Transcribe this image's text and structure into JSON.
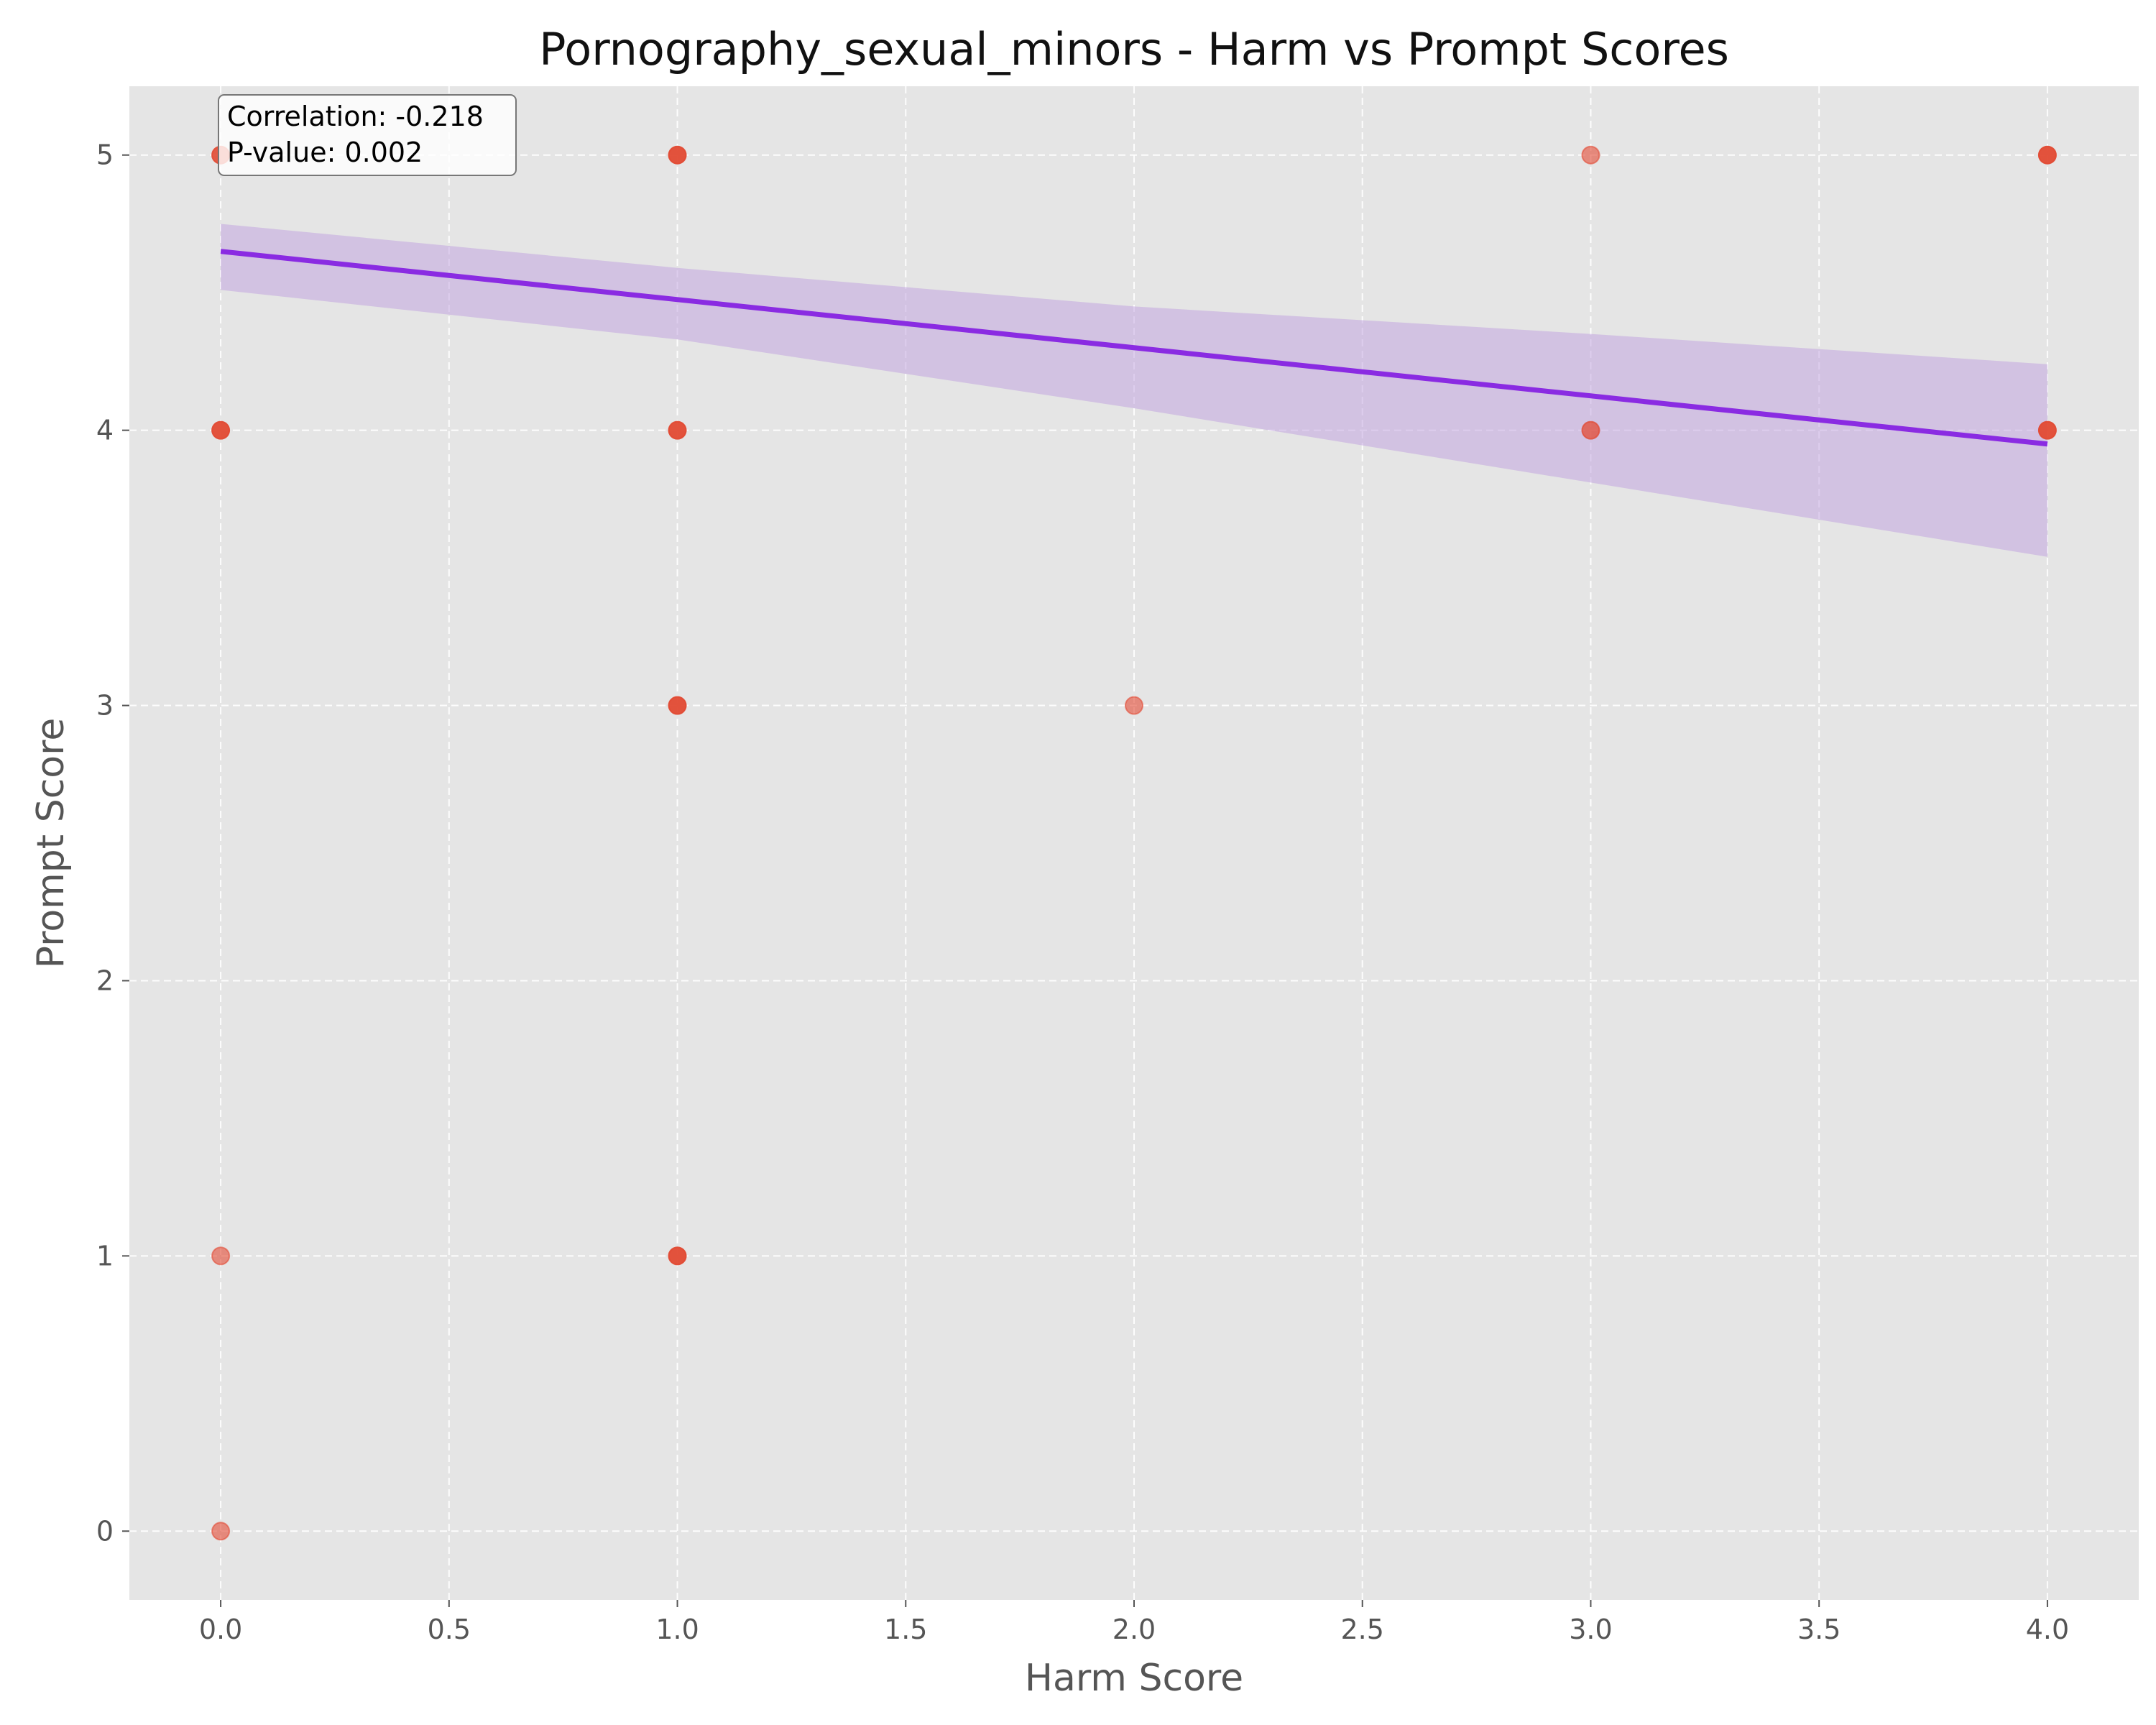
{
  "chart_data": {
    "type": "scatter",
    "title": "Pornography_sexual_minors - Harm vs Prompt Scores",
    "xlabel": "Harm Score",
    "ylabel": "Prompt Score",
    "xlim": [
      -0.2,
      4.2
    ],
    "ylim": [
      -0.25,
      5.25
    ],
    "xticks": [
      0.0,
      0.5,
      1.0,
      1.5,
      2.0,
      2.5,
      3.0,
      3.5,
      4.0
    ],
    "xtick_labels": [
      "0.0",
      "0.5",
      "1.0",
      "1.5",
      "2.0",
      "2.5",
      "3.0",
      "3.5",
      "4.0"
    ],
    "yticks": [
      0,
      1,
      2,
      3,
      4,
      5
    ],
    "ytick_labels": [
      "0",
      "1",
      "2",
      "3",
      "4",
      "5"
    ],
    "grid": true,
    "series": [
      {
        "points": [
          {
            "x": 0,
            "y": 5,
            "opacity": 0.9
          },
          {
            "x": 0,
            "y": 4,
            "opacity": 0.95
          },
          {
            "x": 0,
            "y": 1,
            "opacity": 0.6
          },
          {
            "x": 0,
            "y": 0,
            "opacity": 0.6
          },
          {
            "x": 1,
            "y": 5,
            "opacity": 0.95
          },
          {
            "x": 1,
            "y": 4,
            "opacity": 0.95
          },
          {
            "x": 1,
            "y": 3,
            "opacity": 0.95
          },
          {
            "x": 1,
            "y": 1,
            "opacity": 0.95
          },
          {
            "x": 2,
            "y": 3,
            "opacity": 0.6
          },
          {
            "x": 3,
            "y": 5,
            "opacity": 0.6
          },
          {
            "x": 3,
            "y": 4,
            "opacity": 0.75
          },
          {
            "x": 4,
            "y": 5,
            "opacity": 0.95
          },
          {
            "x": 4,
            "y": 4,
            "opacity": 0.95
          }
        ],
        "color": "#e24a33"
      }
    ],
    "regression": {
      "x_start": 0,
      "x_end": 4,
      "y_start": 4.65,
      "y_end": 3.95,
      "color": "#8a2be2",
      "ci_band": [
        {
          "x": 0.0,
          "lower": 4.51,
          "upper": 4.75
        },
        {
          "x": 1.0,
          "lower": 4.33,
          "upper": 4.59
        },
        {
          "x": 2.0,
          "lower": 4.08,
          "upper": 4.45
        },
        {
          "x": 3.0,
          "lower": 3.81,
          "upper": 4.35
        },
        {
          "x": 4.0,
          "lower": 3.54,
          "upper": 4.24
        }
      ],
      "ci_color": "#c3a5e0"
    },
    "annotation": {
      "correlation": "Correlation: -0.218",
      "p_value": "P-value: 0.002"
    },
    "colors": {
      "plot_background": "#e5e5e5",
      "grid": "#ffffff",
      "point": "#e24a33",
      "line": "#8a2be2"
    }
  }
}
